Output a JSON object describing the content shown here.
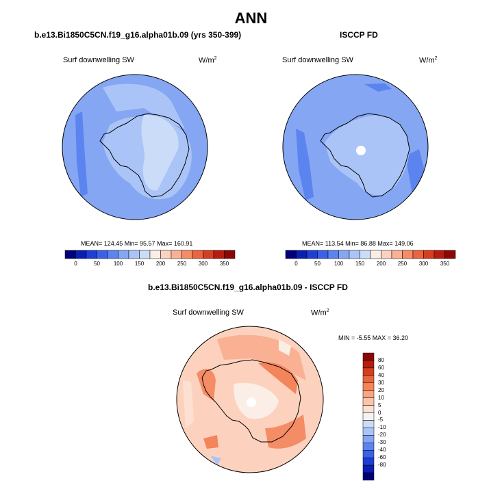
{
  "title": "ANN",
  "panels": [
    {
      "title": "b.e13.Bi1850C5CN.f19_g16.alpha01b.09 (yrs 350-399)",
      "variable": "Surf downwelling SW",
      "unit_base": "W/m",
      "unit_exp": "2",
      "stats": "MEAN= 124.45  Min=  95.57  Max= 160.91"
    },
    {
      "title": "ISCCP FD",
      "variable": "Surf downwelling SW",
      "unit_base": "W/m",
      "unit_exp": "2",
      "stats": "MEAN= 113.54  Min=  86.88  Max= 149.06"
    },
    {
      "title": "b.e13.Bi1850C5CN.f19_g16.alpha01b.09 - ISCCP FD",
      "variable": "Surf downwelling SW",
      "unit_base": "W/m",
      "unit_exp": "2",
      "stats": "MIN =  -5.55 MAX =  36.20"
    }
  ],
  "colorbar_main": {
    "colors": [
      "#00007a",
      "#0a1fb0",
      "#1d3fd6",
      "#3a62e8",
      "#5c84ef",
      "#84a6f3",
      "#aac4f7",
      "#cbdcf9",
      "#fbeee6",
      "#fcd2bf",
      "#f9b093",
      "#f48c66",
      "#ea6440",
      "#d63e21",
      "#b51c0f",
      "#8b0604"
    ],
    "labels": [
      "0",
      "50",
      "100",
      "150",
      "200",
      "250",
      "300",
      "350"
    ]
  },
  "colorbar_diff": {
    "colors": [
      "#00007a",
      "#0a1fb0",
      "#1d3fd6",
      "#3a62e8",
      "#5c84ef",
      "#84a6f3",
      "#aac4f7",
      "#cbdcf9",
      "#f3f3f3",
      "#fce1d2",
      "#fbc5aa",
      "#f9a680",
      "#f4845a",
      "#ea6440",
      "#d63e21",
      "#b51c0f",
      "#8b0604"
    ],
    "labels": [
      "80",
      "60",
      "40",
      "30",
      "20",
      "10",
      "5",
      "0",
      "-5",
      "-10",
      "-20",
      "-30",
      "-40",
      "-60",
      "-80"
    ]
  }
}
